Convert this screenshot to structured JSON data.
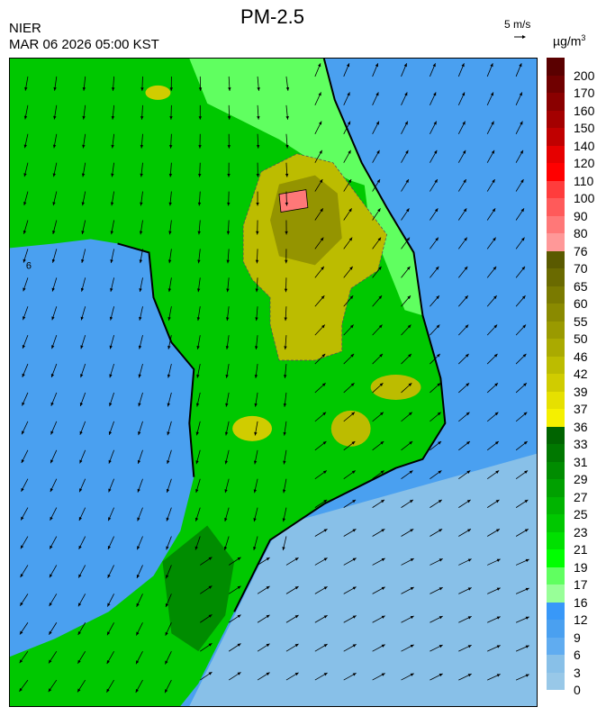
{
  "header": {
    "title": "PM-2.5",
    "organization": "NIER",
    "timestamp": "MAR 06 2026 05:00 KST",
    "wind_scale_label": "5 m/s",
    "unit": "µg/m",
    "unit_superscript": "3"
  },
  "legend": {
    "labels": [
      "200",
      "170",
      "160",
      "150",
      "140",
      "120",
      "110",
      "100",
      "90",
      "80",
      "76",
      "70",
      "65",
      "60",
      "55",
      "50",
      "46",
      "42",
      "39",
      "37",
      "36",
      "33",
      "31",
      "29",
      "27",
      "25",
      "23",
      "21",
      "19",
      "17",
      "16",
      "12",
      "9",
      "6",
      "3",
      "0"
    ],
    "colors": [
      "#5a0000",
      "#700000",
      "#8a0000",
      "#a40000",
      "#c00000",
      "#e60000",
      "#ff0000",
      "#ff3c3c",
      "#ff5a5a",
      "#ff7878",
      "#ff9898",
      "#5a5a00",
      "#6a6a00",
      "#7a7a00",
      "#8a8a00",
      "#9a9a00",
      "#aaaa00",
      "#bcbc00",
      "#d0cc00",
      "#e6e000",
      "#f5f000",
      "#006400",
      "#007800",
      "#008c00",
      "#00a000",
      "#00b400",
      "#00c800",
      "#00e000",
      "#00ff00",
      "#60ff60",
      "#98ff98",
      "#3898f8",
      "#4aa0f0",
      "#60acf0",
      "#88c0e8",
      "#98c8e8"
    ]
  },
  "map": {
    "ocean_color": "#4aa0f0",
    "land_low_color": "#00c800",
    "land_light_color": "#60ff60",
    "high_color": "#bcbc00",
    "peak_color": "#ff7878",
    "contour_label": "6"
  }
}
